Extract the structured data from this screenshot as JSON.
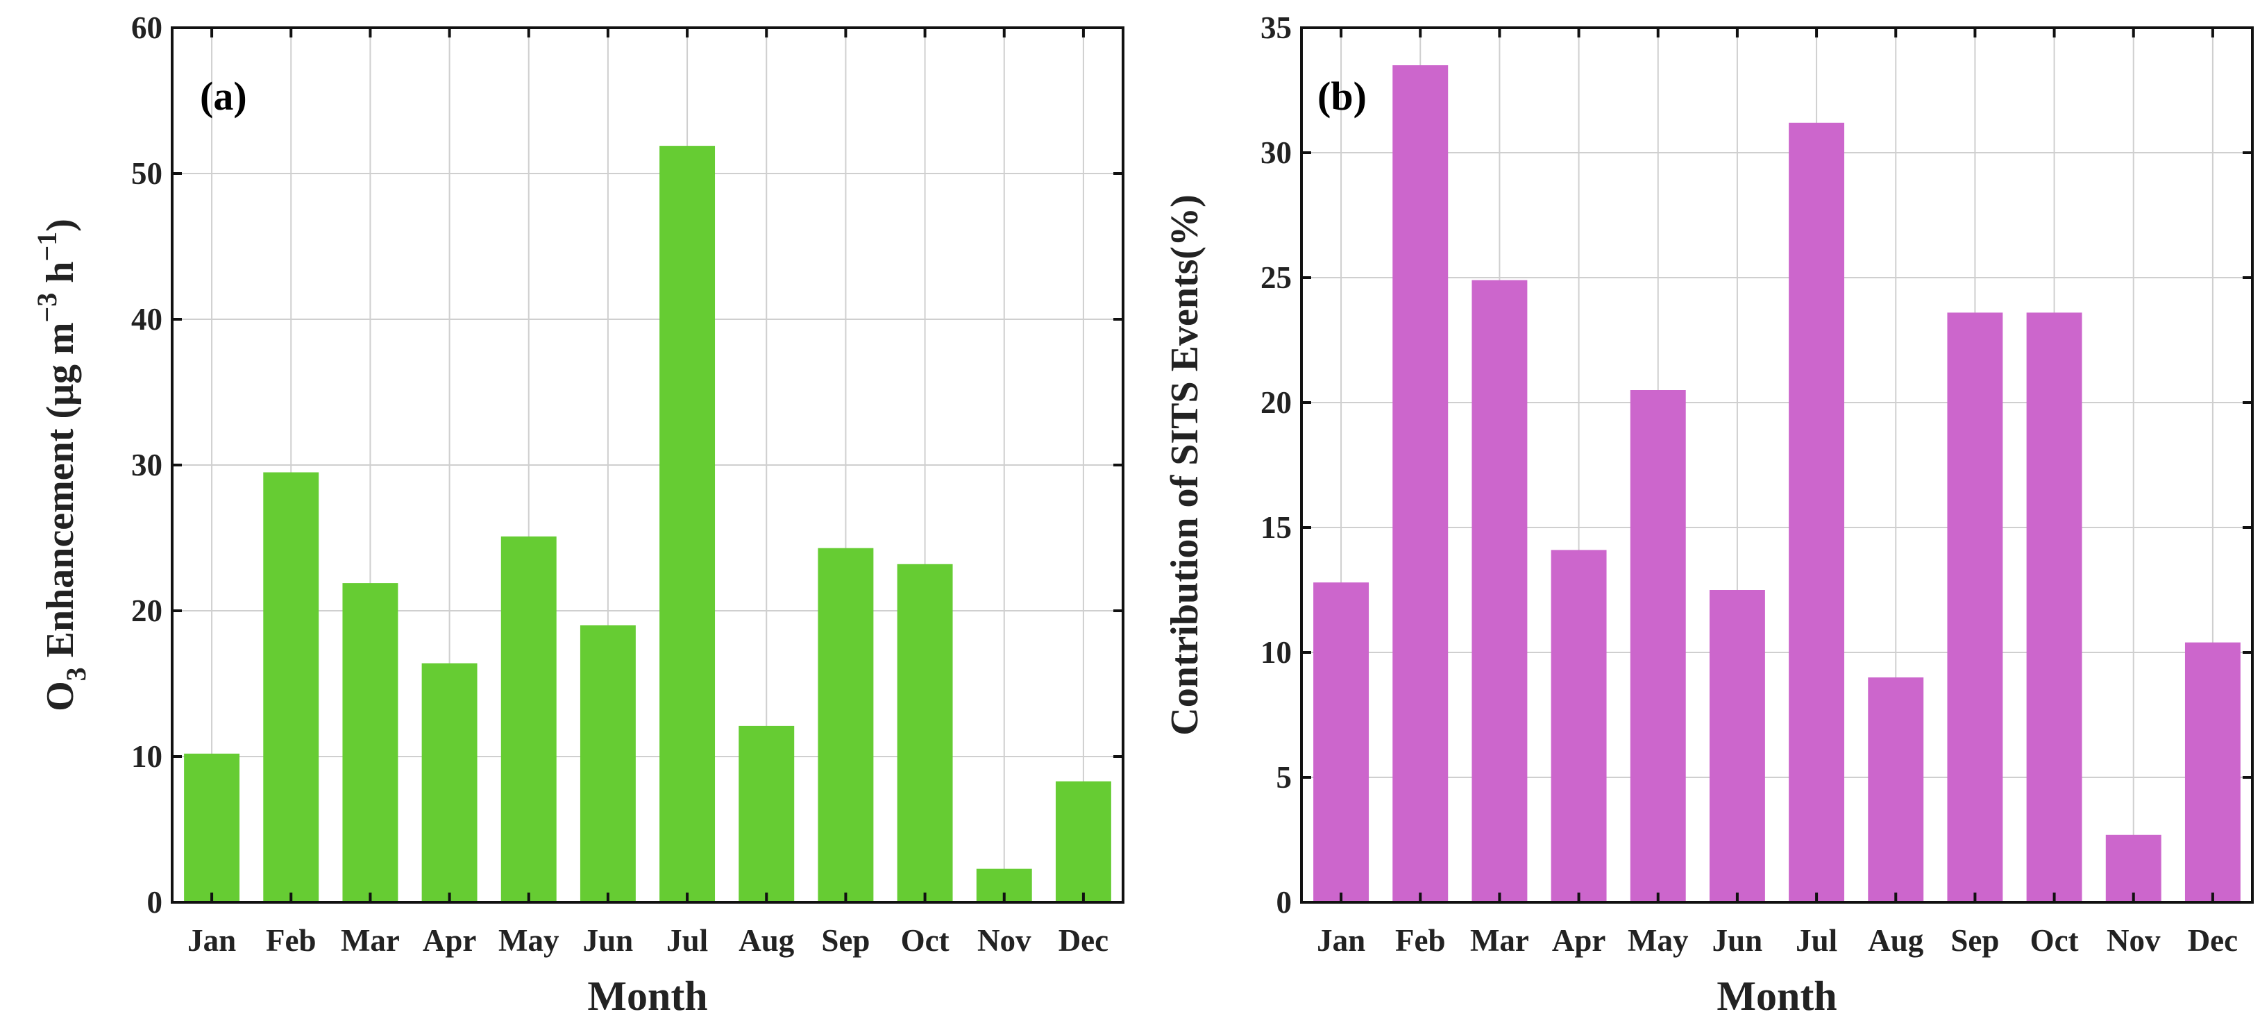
{
  "chart_data": [
    {
      "type": "bar",
      "panel_label": "(a)",
      "categories": [
        "Jan",
        "Feb",
        "Mar",
        "Apr",
        "May",
        "Jun",
        "Jul",
        "Aug",
        "Sep",
        "Oct",
        "Nov",
        "Dec"
      ],
      "values": [
        10.2,
        29.5,
        21.9,
        16.4,
        25.1,
        19.0,
        51.9,
        12.1,
        24.3,
        23.2,
        2.3,
        8.3
      ],
      "xlabel": "Month",
      "ylabel_main": "O",
      "ylabel_sub": "3",
      "ylabel_rest": " Enhancement (μg m",
      "ylabel_sup1": "−3",
      "ylabel_mid": " h",
      "ylabel_sup2": "−1",
      "ylabel_end": ")",
      "ylim": [
        0,
        60
      ],
      "yticks": [
        0,
        10,
        20,
        30,
        40,
        50,
        60
      ],
      "grid": true,
      "bar_color": "#66cc33"
    },
    {
      "type": "bar",
      "panel_label": "(b)",
      "categories": [
        "Jan",
        "Feb",
        "Mar",
        "Apr",
        "May",
        "Jun",
        "Jul",
        "Aug",
        "Sep",
        "Oct",
        "Nov",
        "Dec"
      ],
      "values": [
        12.8,
        33.5,
        24.9,
        14.1,
        20.5,
        12.5,
        31.2,
        9.0,
        23.6,
        23.6,
        2.7,
        10.4
      ],
      "xlabel": "Month",
      "ylabel": "Contribution of SITS Events(%)",
      "ylim": [
        0,
        35
      ],
      "yticks": [
        0,
        5,
        10,
        15,
        20,
        25,
        30,
        35
      ],
      "grid": true,
      "bar_color": "#cc66cc"
    }
  ]
}
